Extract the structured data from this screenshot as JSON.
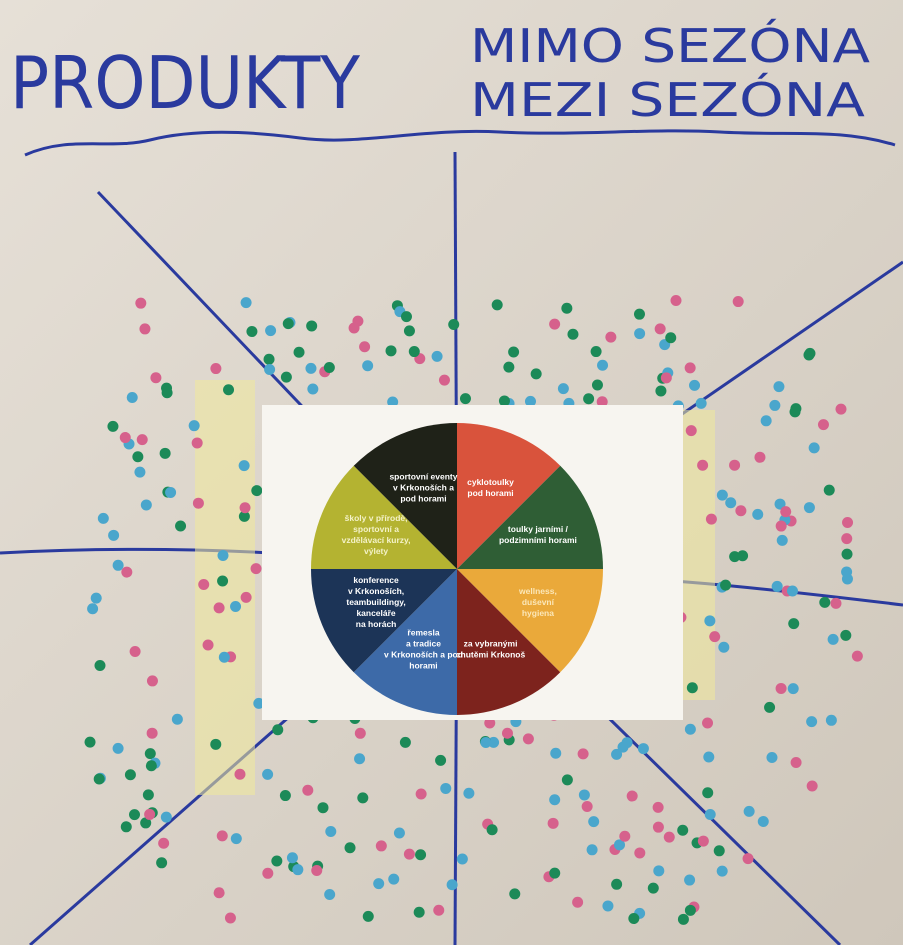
{
  "header": {
    "title": "PRODUKTY",
    "labels": [
      "MIMO SEZÓNA",
      "MEZI SEZÓNA"
    ]
  },
  "wheel": {
    "segments": [
      {
        "lines": [
          "cyklotoulky",
          "pod horami"
        ],
        "color": "#d9533c",
        "text_color": "#ffffff"
      },
      {
        "lines": [
          "toulky jarními /",
          "podzimními horami"
        ],
        "color": "#2f5e35",
        "text_color": "#ffffff"
      },
      {
        "lines": [
          "wellness,",
          "duševní",
          "hygiena"
        ],
        "color": "#eaa93a",
        "text_color": "#fbe7b8"
      },
      {
        "lines": [
          "za vybranými",
          "chutěmi Krkonoš"
        ],
        "color": "#7d231d",
        "text_color": "#ffffff"
      },
      {
        "lines": [
          "řemesla",
          "a tradice",
          "v Krkonoších a pod",
          "horami"
        ],
        "color": "#3d6aa8",
        "text_color": "#ffffff"
      },
      {
        "lines": [
          "konference",
          "v Krkonoších,",
          "teambuildingy,",
          "kanceláře",
          "na horách"
        ],
        "color": "#1c3457",
        "text_color": "#ffffff"
      },
      {
        "lines": [
          "školy v přírodě,",
          "sportovní a",
          "vzdělávací kurzy,",
          "výlety"
        ],
        "color": "#b4b331",
        "text_color": "#f4f2c8"
      },
      {
        "lines": [
          "sportovní eventy",
          "v Krkonoších a",
          "pod horami"
        ],
        "color": "#1f2218",
        "text_color": "#ffffff"
      }
    ]
  }
}
